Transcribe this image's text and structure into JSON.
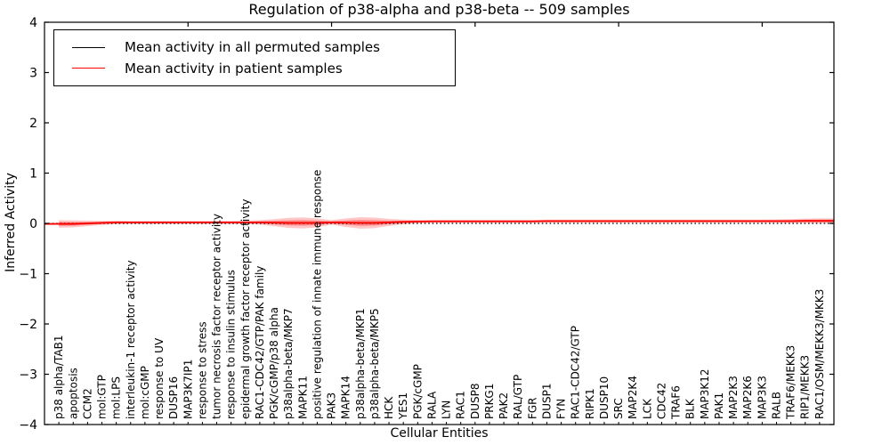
{
  "title": "Regulation of p38-alpha and p38-beta -- 509 samples",
  "legend": {
    "items": [
      {
        "label": "Mean activity in all permuted samples",
        "color": "#000000"
      },
      {
        "label": "Mean activity in patient samples",
        "color": "#ff0000"
      }
    ],
    "position": "upper left"
  },
  "colors": {
    "permuted_line": "#000000",
    "patient_line": "#ff0000",
    "band_fill": "#ff0000",
    "axes": "#000000",
    "background": "#ffffff"
  },
  "chart_data": {
    "type": "line",
    "title": "Regulation of p38-alpha and p38-beta -- 509 samples",
    "xlabel": "Cellular Entities",
    "ylabel": "Inferred Activity",
    "ylim": [
      -4,
      4
    ],
    "xlim": [
      0,
      55
    ],
    "grid": false,
    "legend_position": "upper left",
    "yticks": [
      4,
      3,
      2,
      1,
      0,
      -1,
      -2,
      -3,
      -4
    ],
    "ytick_labels": [
      "4",
      "3",
      "2",
      "1",
      "0",
      "−1",
      "−2",
      "−3",
      "−4"
    ],
    "xticks_top": [
      10,
      20,
      30,
      40,
      50
    ],
    "categories": [
      "p38 alpha/TAB1",
      "apoptosis",
      "CCM2",
      "mol:GTP",
      "mol:LPS",
      "interleukin-1 receptor activity",
      "mol:cGMP",
      "response to UV",
      "DUSP16",
      "MAP3K7IP1",
      "response to stress",
      "tumor necrosis factor receptor activity",
      "response to insulin stimulus",
      "epidermal growth factor receptor activity",
      "RAC1-CDC42/GTP/PAK family",
      "PGK/cGMP/p38 alpha",
      "p38alpha-beta/MKP7",
      "MAPK11",
      "positive regulation of innate immune response",
      "PAK3",
      "MAPK14",
      "p38alpha-beta/MKP1",
      "p38alpha-beta/MKP5",
      "HCK",
      "YES1",
      "PGK/cGMP",
      "RALA",
      "LYN",
      "RAC1",
      "DUSP8",
      "PRKG1",
      "PAK2",
      "RAL/GTP",
      "FGR",
      "DUSP1",
      "FYN",
      "RAC1-CDC42/GTP",
      "RIPK1",
      "DUSP10",
      "SRC",
      "MAP2K4",
      "LCK",
      "CDC42",
      "TRAF6",
      "BLK",
      "MAP3K12",
      "PAK1",
      "MAP2K3",
      "MAP2K6",
      "MAP3K3",
      "RALB",
      "TRAF6/MEKK3",
      "RIP1/MEKK3",
      "RAC1/OSM/MEKK3/MKK3"
    ],
    "series": [
      {
        "name": "Mean activity in all permuted samples",
        "color": "#000000",
        "style": "dotted",
        "values": [
          0,
          0,
          0,
          0,
          0,
          0,
          0,
          0,
          0,
          0,
          0,
          0,
          0,
          0,
          0,
          0,
          0,
          0,
          0,
          0,
          0,
          0,
          0,
          0,
          0,
          0,
          0,
          0,
          0,
          0,
          0,
          0,
          0,
          0,
          0,
          0,
          0,
          0,
          0,
          0,
          0,
          0,
          0,
          0,
          0,
          0,
          0,
          0,
          0,
          0,
          0,
          0,
          0,
          0
        ]
      },
      {
        "name": "Mean activity in patient samples",
        "color": "#ff0000",
        "style": "solid",
        "values": [
          -0.01,
          -0.01,
          0,
          0.01,
          0.02,
          0.02,
          0.02,
          0.02,
          0.02,
          0.02,
          0.02,
          0.02,
          0.02,
          0.02,
          0.02,
          0.015,
          0.01,
          0.01,
          0.01,
          0.02,
          0.015,
          0.01,
          0.01,
          0.02,
          0.03,
          0.035,
          0.04,
          0.04,
          0.04,
          0.04,
          0.04,
          0.04,
          0.04,
          0.04,
          0.045,
          0.045,
          0.045,
          0.045,
          0.045,
          0.045,
          0.045,
          0.045,
          0.045,
          0.045,
          0.045,
          0.045,
          0.045,
          0.045,
          0.045,
          0.045,
          0.045,
          0.045,
          0.05,
          0.05
        ]
      }
    ],
    "band": {
      "name": "patient-sample spread around mean",
      "color": "#ff0000",
      "outer_opacity": 0.22,
      "inner_opacity": 0.33,
      "half_widths": [
        0.075,
        0.07,
        0.055,
        0.04,
        0.035,
        0.03,
        0.03,
        0.03,
        0.03,
        0.03,
        0.03,
        0.03,
        0.03,
        0.035,
        0.045,
        0.07,
        0.1,
        0.11,
        0.09,
        0.045,
        0.085,
        0.115,
        0.105,
        0.07,
        0.045,
        0.035,
        0.03,
        0.03,
        0.03,
        0.03,
        0.03,
        0.03,
        0.03,
        0.03,
        0.03,
        0.03,
        0.03,
        0.03,
        0.03,
        0.03,
        0.03,
        0.03,
        0.03,
        0.03,
        0.03,
        0.03,
        0.03,
        0.03,
        0.03,
        0.032,
        0.035,
        0.04,
        0.045,
        0.05
      ]
    }
  }
}
